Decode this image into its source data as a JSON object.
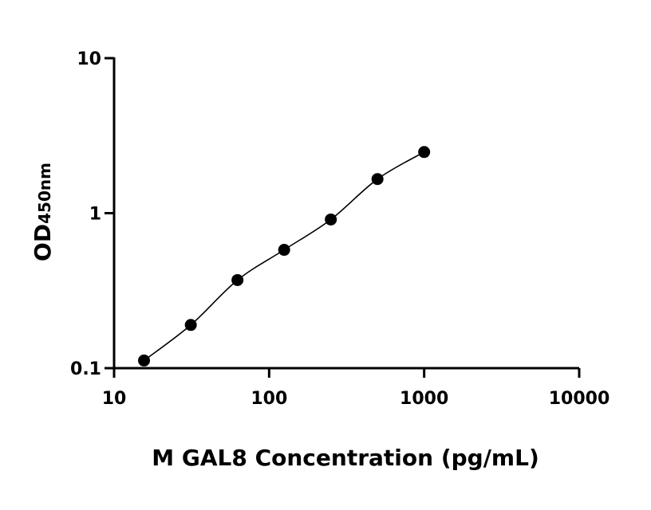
{
  "chart_data": {
    "type": "scatter",
    "x_scale": "log",
    "y_scale": "log",
    "xlim": [
      10,
      10000
    ],
    "ylim": [
      0.1,
      10
    ],
    "x_ticks": [
      "10",
      "100",
      "1000",
      "10000"
    ],
    "y_ticks": [
      "0.1",
      "1",
      "10"
    ],
    "xlabel": "M GAL8 Concentration (pg/mL)",
    "ylabel": "OD",
    "ylabel_subscript": "450nm",
    "grid": false,
    "legend": "none",
    "series": [
      {
        "x": [
          15.6,
          31.25,
          62.5,
          125,
          250,
          500,
          1000
        ],
        "y": [
          0.112,
          0.19,
          0.37,
          0.58,
          0.91,
          1.66,
          2.48
        ],
        "marker": "filled-circle",
        "fit_line": true
      }
    ],
    "colors": {
      "marker": "#000000",
      "line": "#000000",
      "axis": "#000000"
    }
  }
}
